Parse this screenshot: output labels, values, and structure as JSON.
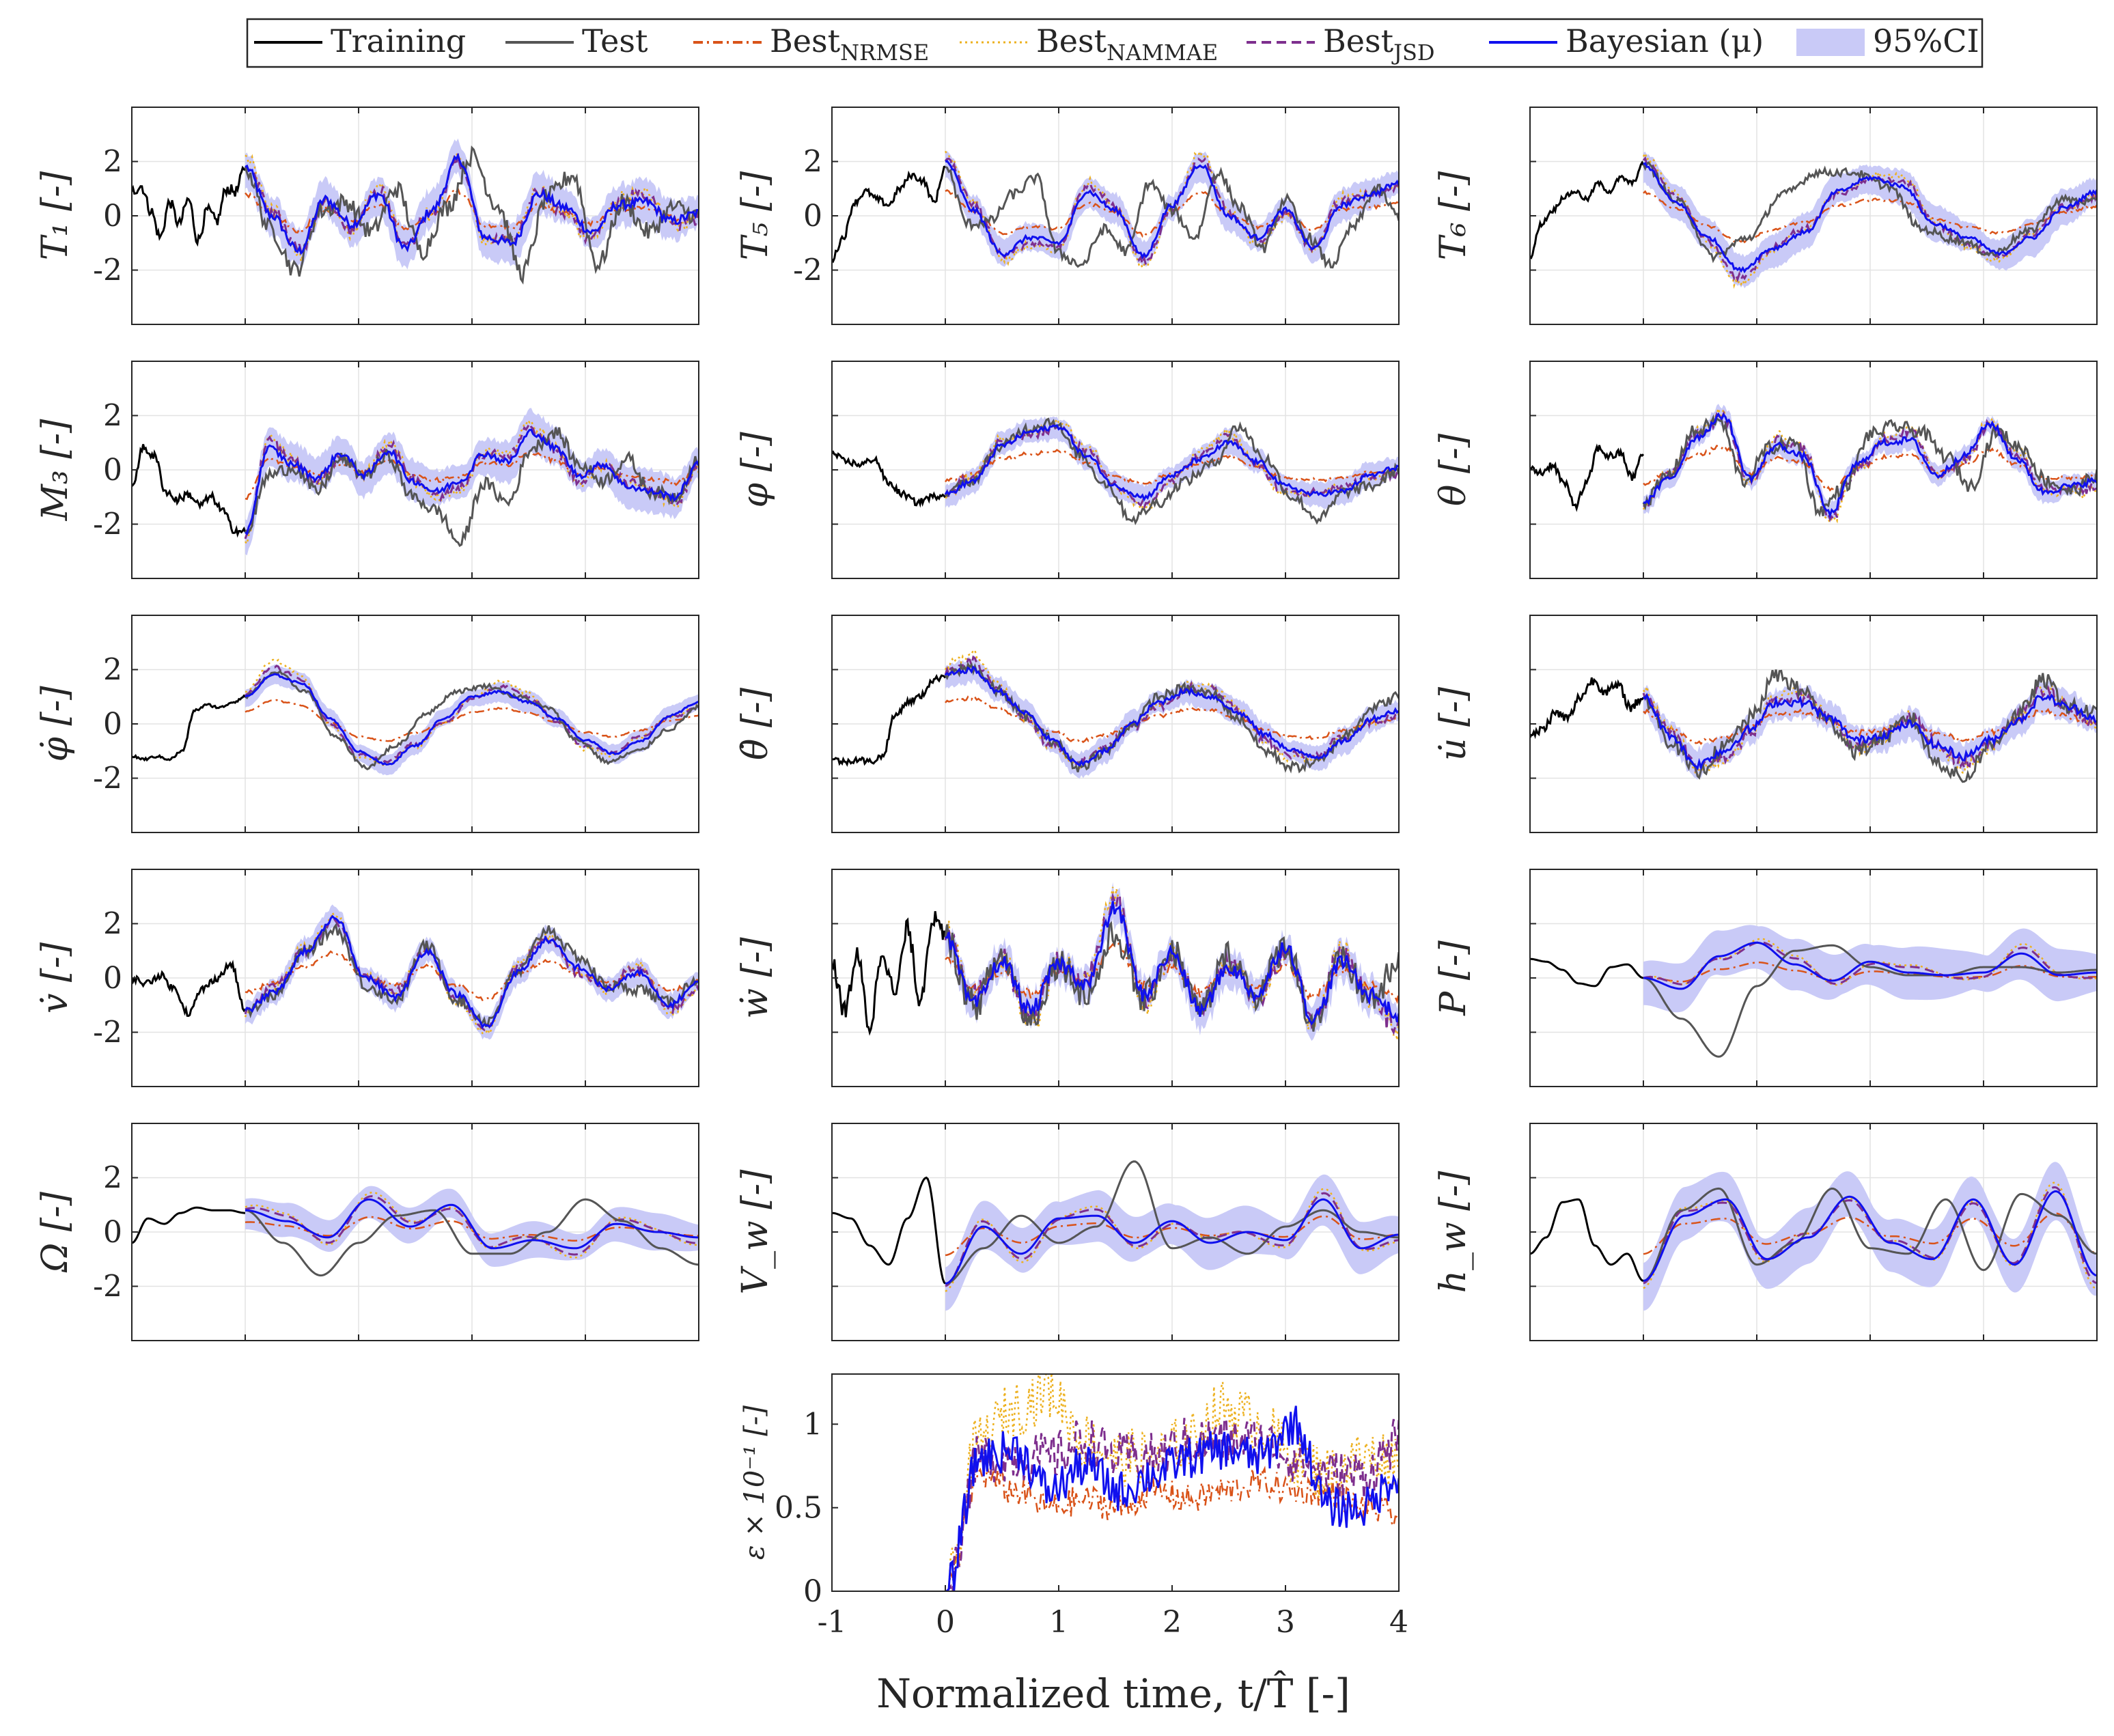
{
  "chart_data": {
    "type": "line",
    "layout": "5x3 grid of time-series panels plus one error panel",
    "xlabel": "Normalized time, t/T̂ [-]",
    "xlim": [
      -1,
      4
    ],
    "xticks": [
      "-1",
      "0",
      "1",
      "2",
      "3",
      "4"
    ],
    "grid": true,
    "legend": {
      "placement": "top",
      "entries": [
        {
          "key": "training",
          "label": "Training",
          "color": "#000000",
          "style": "solid"
        },
        {
          "key": "test",
          "label": "Test",
          "color": "#555555",
          "style": "solid"
        },
        {
          "key": "nrmse",
          "label": "Best",
          "sub": "NRMSE",
          "color": "#d95319",
          "style": "dashdot"
        },
        {
          "key": "nammae",
          "label": "Best",
          "sub": "NAMMAE",
          "color": "#edb120",
          "style": "dotted"
        },
        {
          "key": "jsd",
          "label": "Best",
          "sub": "JSD",
          "color": "#7e2f8e",
          "style": "dashed"
        },
        {
          "key": "bayes",
          "label": "Bayesian (μ)",
          "color": "#1010ee",
          "style": "solid"
        },
        {
          "key": "ci",
          "label": "95%CI",
          "color": "#c9caf7",
          "style": "band"
        }
      ]
    },
    "panels": [
      {
        "id": "T1",
        "ylabel": "T₁ [-]",
        "ylim": [
          -4,
          4
        ],
        "yticks": [
          "2",
          "0",
          "-2"
        ],
        "train_start": -1,
        "training_knots": [
          0.9,
          1.1,
          0.2,
          -0.8,
          0.5,
          -0.3,
          0.6,
          -0.9,
          0.2,
          -0.2,
          1.0,
          0.9,
          1.8
        ],
        "test_knots": [
          1.8,
          -0.5,
          -2.0,
          0.2,
          0.5,
          -0.6,
          1.0,
          -1.3,
          0.3,
          2.2,
          0.4,
          -2.1,
          0.7,
          1.5,
          -1.8,
          0.5,
          -0.6,
          0.3,
          0.0
        ],
        "bayes_knots": [
          1.8,
          0.0,
          -1.3,
          0.6,
          -0.3,
          0.8,
          -1.2,
          0.2,
          2.1,
          -0.8,
          -1.0,
          0.8,
          0.3,
          -0.6,
          0.4,
          0.5,
          -0.2,
          0.1
        ],
        "band": 0.8,
        "noise": 0.35
      },
      {
        "id": "T5",
        "ylabel": "T₅ [-]",
        "ylim": [
          -4,
          4
        ],
        "yticks": [
          "2",
          "0",
          "-2"
        ],
        "train_start": -1,
        "training_knots": [
          -1.6,
          -0.8,
          0.5,
          0.9,
          0.6,
          0.4,
          1.0,
          1.5,
          1.3,
          0.5,
          1.8
        ],
        "test_knots": [
          1.8,
          -0.3,
          -0.2,
          0.8,
          1.4,
          -1.4,
          -1.8,
          -0.5,
          -1.3,
          1.2,
          0.2,
          -0.8,
          1.6,
          0.3,
          -1.2,
          0.6,
          -0.8,
          -1.8,
          -0.4,
          1.0,
          0.0
        ],
        "bayes_knots": [
          2.0,
          0.2,
          -1.4,
          -0.8,
          -1.0,
          0.9,
          0.2,
          -1.5,
          0.4,
          1.9,
          0.0,
          -0.8,
          0.2,
          -1.2,
          0.4,
          0.8,
          1.2
        ],
        "band": 0.6,
        "noise": 0.2
      },
      {
        "id": "T6",
        "ylabel": "T₆ [-]",
        "ylim": [
          -4,
          4
        ],
        "yticks": [],
        "train_start": -1,
        "training_knots": [
          -1.5,
          -0.3,
          0.2,
          0.7,
          0.9,
          0.6,
          1.2,
          0.9,
          1.4,
          1.2,
          1.9
        ],
        "test_knots": [
          1.9,
          0.5,
          -1.5,
          -0.8,
          0.8,
          1.6,
          1.6,
          1.1,
          -0.5,
          -0.9,
          -1.4,
          -0.6,
          0.6,
          0.5
        ],
        "bayes_knots": [
          1.9,
          0.5,
          -0.8,
          -2.0,
          -1.2,
          -0.6,
          0.9,
          1.4,
          1.1,
          -0.3,
          -0.8,
          -1.4,
          -0.8,
          0.3,
          0.9
        ],
        "band": 0.7,
        "noise": 0.15
      },
      {
        "id": "M3",
        "ylabel": "M₃ [-]",
        "ylim": [
          -4,
          4
        ],
        "yticks": [
          "2",
          "0",
          "-2"
        ],
        "train_start": -1,
        "training_knots": [
          -0.6,
          0.8,
          0.5,
          -0.8,
          -1.1,
          -0.9,
          -1.3,
          -1.0,
          -1.5,
          -2.2,
          -2.3
        ],
        "test_knots": [
          -2.3,
          -0.2,
          0.1,
          -0.8,
          0.4,
          -0.2,
          0.5,
          -1.0,
          -1.5,
          -2.7,
          -0.5,
          -1.2,
          0.8,
          1.4,
          0.2,
          -0.4,
          0.4,
          -0.8,
          -1.0,
          0.4
        ],
        "bayes_knots": [
          -2.3,
          0.8,
          0.2,
          -0.3,
          0.6,
          -0.2,
          0.7,
          -0.4,
          -0.8,
          -0.4,
          0.6,
          0.3,
          1.4,
          0.8,
          -0.2,
          0.2,
          -0.6,
          -0.8,
          -1.0,
          0.2
        ],
        "band": 0.8,
        "noise": 0.25
      },
      {
        "id": "phi",
        "ylabel": "φ [-]",
        "ylim": [
          -4,
          4
        ],
        "yticks": [],
        "train_start": -1,
        "training_knots": [
          0.6,
          0.3,
          0.2,
          0.4,
          -0.5,
          -0.9,
          -1.2,
          -1.0,
          -0.9
        ],
        "test_knots": [
          -0.9,
          -0.4,
          0.8,
          1.5,
          1.8,
          0.6,
          -0.5,
          -1.8,
          -1.2,
          -0.4,
          0.2,
          1.6,
          0.4,
          -1.0,
          -1.8,
          -0.8,
          -0.6,
          0.0
        ],
        "bayes_knots": [
          -0.9,
          -0.4,
          0.9,
          1.4,
          1.6,
          0.5,
          -0.6,
          -1.0,
          -0.2,
          0.4,
          1.0,
          0.3,
          -0.6,
          -0.9,
          -0.8,
          -0.2,
          0.1
        ],
        "band": 0.5,
        "noise": 0.2
      },
      {
        "id": "theta",
        "ylabel": "θ [-]",
        "ylim": [
          -4,
          4
        ],
        "yticks": [],
        "train_start": -1,
        "training_knots": [
          0.0,
          -0.1,
          0.2,
          -0.5,
          -1.3,
          -0.5,
          0.8,
          0.5,
          0.6,
          -0.3,
          0.6
        ],
        "test_knots": [
          -1.2,
          -0.2,
          1.4,
          1.8,
          -0.4,
          0.8,
          1.0,
          -1.5,
          -0.6,
          1.3,
          1.6,
          1.4,
          0.5,
          -0.6,
          1.4,
          0.8,
          -0.4,
          -0.8,
          -0.2
        ],
        "bayes_knots": [
          -1.2,
          -0.3,
          1.2,
          2.0,
          -0.3,
          0.9,
          0.5,
          -1.6,
          0.2,
          1.0,
          1.1,
          -0.2,
          0.5,
          1.7,
          0.4,
          -0.8,
          -0.6,
          -0.4
        ],
        "band": 0.4,
        "noise": 0.25
      },
      {
        "id": "phidot",
        "ylabel": "φ̇ [-]",
        "ylim": [
          -4,
          4
        ],
        "yticks": [
          "2",
          "0",
          "-2"
        ],
        "train_start": -1,
        "training_knots": [
          -1.2,
          -1.3,
          -1.2,
          -1.3,
          -1.0,
          0.5,
          0.7,
          0.6,
          0.8,
          1.0
        ],
        "test_knots": [
          1.0,
          1.9,
          1.2,
          -0.5,
          -1.6,
          -0.8,
          0.4,
          1.2,
          1.4,
          1.0,
          0.6,
          -0.6,
          -1.4,
          -1.0,
          -0.2,
          0.6
        ],
        "bayes_knots": [
          1.0,
          1.8,
          1.5,
          0.2,
          -1.0,
          -1.5,
          -0.8,
          0.2,
          1.0,
          1.2,
          0.8,
          0.2,
          -0.6,
          -1.1,
          -0.6,
          0.3,
          0.8
        ],
        "band": 0.4,
        "noise": 0.08
      },
      {
        "id": "thetadot",
        "ylabel": "θ̇ [-]",
        "ylim": [
          -4,
          4
        ],
        "yticks": [],
        "train_start": -1,
        "training_knots": [
          -1.3,
          -1.4,
          -1.3,
          -1.4,
          -1.2,
          0.3,
          0.8,
          1.0,
          1.6,
          1.8
        ],
        "test_knots": [
          1.8,
          2.1,
          1.2,
          0.3,
          -0.6,
          -1.6,
          -1.0,
          0.0,
          1.0,
          1.3,
          1.1,
          0.2,
          -1.0,
          -1.6,
          -1.4,
          -0.4,
          0.6,
          1.0
        ],
        "bayes_knots": [
          1.8,
          2.0,
          1.2,
          0.4,
          -0.6,
          -1.5,
          -1.0,
          0.0,
          0.8,
          1.2,
          1.0,
          0.4,
          -0.4,
          -1.0,
          -1.2,
          -0.6,
          0.2,
          0.5
        ],
        "band": 0.5,
        "noise": 0.2
      },
      {
        "id": "udot",
        "ylabel": "u̇ [-]",
        "ylim": [
          -4,
          4
        ],
        "yticks": [],
        "train_start": -1,
        "training_knots": [
          -0.5,
          -0.2,
          0.4,
          0.2,
          1.0,
          1.6,
          1.2,
          1.4,
          0.6,
          1.0
        ],
        "test_knots": [
          1.0,
          -0.6,
          -1.8,
          -0.9,
          0.2,
          1.8,
          1.2,
          0.0,
          -1.0,
          -0.5,
          0.2,
          -1.4,
          -2.0,
          -0.8,
          0.3,
          1.6,
          0.6,
          0.4
        ],
        "bayes_knots": [
          1.0,
          -0.4,
          -1.5,
          -1.0,
          -0.2,
          0.8,
          0.8,
          0.2,
          -0.6,
          -0.4,
          0.0,
          -0.8,
          -1.2,
          -0.6,
          0.1,
          1.0,
          0.6,
          0.2
        ],
        "band": 0.6,
        "noise": 0.3
      },
      {
        "id": "vdot",
        "ylabel": "v̇ [-]",
        "ylim": [
          -4,
          4
        ],
        "yticks": [
          "2",
          "0",
          "-2"
        ],
        "train_start": -1,
        "training_knots": [
          0.0,
          -0.2,
          0.1,
          -0.4,
          -1.3,
          -0.4,
          0.0,
          0.5,
          -1.2
        ],
        "test_knots": [
          -1.2,
          -0.6,
          1.0,
          1.8,
          -0.3,
          -0.8,
          1.2,
          -0.8,
          -1.6,
          0.2,
          1.8,
          0.8,
          -0.3,
          -0.4,
          -0.9,
          0.0
        ],
        "bayes_knots": [
          -1.2,
          -0.5,
          1.0,
          2.2,
          0.0,
          -0.7,
          1.0,
          -0.6,
          -1.8,
          0.2,
          1.4,
          0.4,
          -0.4,
          0.2,
          -1.0,
          -0.2
        ],
        "band": 0.5,
        "noise": 0.22
      },
      {
        "id": "wdot",
        "ylabel": "ẇ [-]",
        "ylim": [
          -4,
          4
        ],
        "yticks": [],
        "train_start": -1,
        "training_knots": [
          0.5,
          -1.2,
          0.8,
          -1.8,
          1.0,
          -0.6,
          1.8,
          -0.8,
          2.2,
          1.5
        ],
        "test_knots": [
          1.5,
          -1.0,
          0.8,
          -1.5,
          0.6,
          -0.6,
          1.6,
          -0.8,
          1.0,
          -1.2,
          0.8,
          -0.6,
          1.2,
          -1.6,
          0.6,
          -0.8,
          0.4
        ],
        "bayes_knots": [
          1.5,
          -1.0,
          0.6,
          -1.2,
          0.5,
          -0.2,
          2.6,
          -0.6,
          0.9,
          -1.2,
          0.4,
          -0.6,
          1.2,
          -1.5,
          0.6,
          -0.6,
          -1.4
        ],
        "band": 0.7,
        "noise": 0.6
      },
      {
        "id": "P",
        "ylabel": "P [-]",
        "ylim": [
          -4,
          4
        ],
        "yticks": [],
        "train_start": -1,
        "training_knots": [
          0.7,
          0.6,
          0.3,
          -0.2,
          -0.3,
          0.4,
          0.5,
          0.0
        ],
        "test_knots": [
          0.0,
          -1.5,
          -2.9,
          -0.3,
          1.0,
          1.2,
          0.4,
          0.1,
          0.1,
          0.4,
          0.4,
          0.2,
          0.3
        ],
        "bayes_knots": [
          0.0,
          -0.4,
          0.8,
          1.3,
          0.5,
          -0.1,
          0.6,
          0.2,
          0.1,
          0.2,
          0.9,
          0.1,
          0.2
        ],
        "band": 1.0,
        "noise": 0.0
      },
      {
        "id": "Omega",
        "ylabel": "Ω [-]",
        "ylim": [
          -4,
          4
        ],
        "yticks": [
          "2",
          "0",
          "-2"
        ],
        "train_start": -1,
        "training_knots": [
          -0.4,
          0.5,
          0.3,
          0.7,
          0.9,
          0.8,
          0.8,
          0.7
        ],
        "test_knots": [
          0.8,
          -0.4,
          -1.6,
          -0.4,
          0.6,
          0.8,
          -0.8,
          -0.8,
          0.0,
          1.2,
          0.4,
          -0.6,
          -1.2
        ],
        "bayes_knots": [
          0.8,
          0.4,
          -0.2,
          1.2,
          0.2,
          1.0,
          -0.6,
          -0.3,
          -0.6,
          0.3,
          0.0,
          -0.2
        ],
        "band": 0.7,
        "noise": 0.0
      },
      {
        "id": "Vw",
        "ylabel": "V_w [-]",
        "ylim": [
          -4,
          4
        ],
        "yticks": [],
        "train_start": -1,
        "training_knots": [
          0.7,
          0.5,
          -0.5,
          -1.2,
          0.5,
          2.0,
          -1.9
        ],
        "test_knots": [
          -1.9,
          -0.6,
          0.6,
          -0.4,
          0.2,
          2.6,
          -0.6,
          -0.2,
          -0.8,
          0.2,
          0.8,
          0.0,
          -0.2
        ],
        "bayes_knots": [
          -1.9,
          0.2,
          -0.8,
          0.5,
          0.6,
          -0.4,
          0.4,
          -0.4,
          0.0,
          -0.3,
          1.2,
          -0.6,
          -0.1
        ],
        "band": 1.0,
        "noise": 0.0
      },
      {
        "id": "hw",
        "ylabel": "h_w [-]",
        "ylim": [
          -4,
          4
        ],
        "yticks": [],
        "train_start": -1,
        "training_knots": [
          -0.8,
          -0.2,
          1.1,
          1.2,
          -0.5,
          -1.2,
          -0.8,
          -1.8
        ],
        "test_knots": [
          -1.8,
          0.8,
          1.6,
          -1.2,
          -0.4,
          1.6,
          -0.6,
          -0.8,
          1.2,
          -1.4,
          1.4,
          0.6,
          -0.8
        ],
        "bayes_knots": [
          -1.8,
          0.6,
          1.2,
          -1.0,
          -0.2,
          1.3,
          -0.4,
          -1.0,
          1.2,
          -1.2,
          1.5,
          -1.6
        ],
        "band": 1.1,
        "noise": 0.0
      }
    ],
    "error_panel": {
      "ylabel": "ε × 10⁻¹ [-]",
      "ylim": [
        0,
        1.3
      ],
      "yticks": [
        {
          "v": 0,
          "t": "0"
        },
        {
          "v": 0.5,
          "t": "0.5"
        },
        {
          "v": 1,
          "t": "1"
        }
      ],
      "nrmse_knots": [
        0.0,
        0.7,
        0.6,
        0.5,
        0.55,
        0.5,
        0.6,
        0.55,
        0.6,
        0.65,
        0.6,
        0.6,
        0.5,
        0.45
      ],
      "nammae_knots": [
        0.0,
        0.9,
        1.1,
        1.2,
        0.9,
        0.8,
        0.8,
        0.9,
        1.1,
        1.0,
        0.8,
        0.7,
        0.8,
        0.8
      ],
      "jsd_knots": [
        0.0,
        0.8,
        0.8,
        0.8,
        0.9,
        0.8,
        0.8,
        0.9,
        0.9,
        0.9,
        0.8,
        0.7,
        0.7,
        0.9
      ],
      "bayes_knots": [
        0.0,
        0.8,
        0.85,
        0.6,
        0.75,
        0.6,
        0.7,
        0.8,
        0.85,
        0.8,
        1.0,
        0.5,
        0.5,
        0.7
      ]
    }
  }
}
